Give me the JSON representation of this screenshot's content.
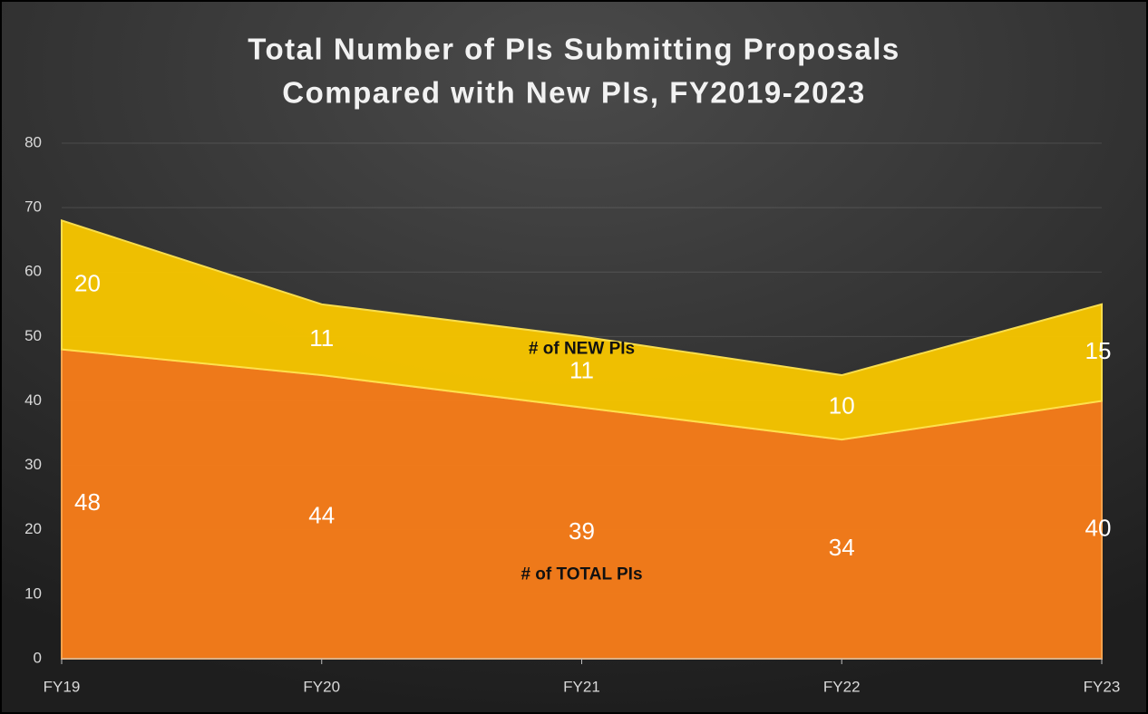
{
  "chart_data": {
    "type": "stacked_area",
    "title": [
      "Total Number of PIs Submitting Proposals",
      "Compared with New PIs, FY2019-2023"
    ],
    "categories": [
      "FY19",
      "FY20",
      "FY21",
      "FY22",
      "FY23"
    ],
    "series": [
      {
        "name": "# of TOTAL PIs",
        "color": "#f57c1a",
        "values": [
          48,
          44,
          39,
          34,
          40
        ]
      },
      {
        "name": "# of NEW PIs",
        "color": "#f5c400",
        "values": [
          20,
          11,
          11,
          10,
          15
        ]
      }
    ],
    "ylim": [
      0,
      80
    ],
    "yticks": [
      0,
      10,
      20,
      30,
      40,
      50,
      60,
      70,
      80
    ],
    "grid": true
  }
}
